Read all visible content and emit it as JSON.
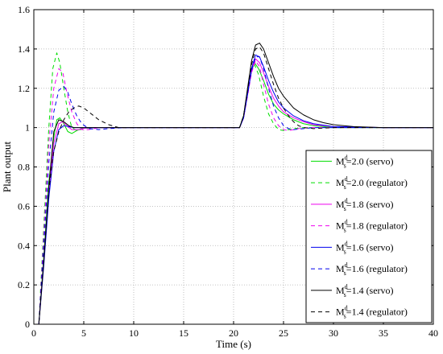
{
  "chart_data": {
    "type": "line",
    "title": "",
    "xlabel": "Time (s)",
    "ylabel": "Plant output",
    "xlim": [
      0,
      40
    ],
    "ylim": [
      0,
      1.6
    ],
    "xticks": [
      0,
      5,
      10,
      15,
      20,
      25,
      30,
      35,
      40
    ],
    "yticks": [
      0,
      0.2,
      0.4,
      0.6,
      0.8,
      1,
      1.2,
      1.4,
      1.6
    ],
    "grid": true,
    "legend_position": "bottom-right",
    "series": [
      {
        "name": "M_s^d=2.0 (servo)",
        "label_main": "M",
        "label_sup": "d",
        "label_sub": "s",
        "label_rest": "=2.0 (servo)",
        "color": "#00dd00",
        "dash": "solid",
        "x": [
          0.5,
          1.0,
          1.5,
          2.0,
          2.3,
          2.6,
          3.0,
          3.4,
          3.8,
          4.3,
          5.0,
          6.0,
          8.0,
          20.6,
          21.0,
          21.4,
          21.8,
          22.1,
          22.5,
          23.0,
          23.5,
          24.0,
          24.5,
          25.0,
          26.0,
          27.0,
          28.0,
          30.0,
          35.0,
          40.0
        ],
        "y": [
          0,
          0.35,
          0.72,
          0.95,
          1.04,
          1.05,
          1.02,
          0.98,
          0.97,
          0.985,
          1.0,
          1.0,
          1.0,
          1.0,
          1.06,
          1.18,
          1.29,
          1.33,
          1.3,
          1.24,
          1.17,
          1.12,
          1.09,
          1.07,
          1.04,
          1.02,
          1.01,
          1.0,
          1.0,
          1.0
        ]
      },
      {
        "name": "M_s^d=2.0 (regulator)",
        "label_main": "M",
        "label_sup": "d",
        "label_sub": "s",
        "label_rest": "=2.0 (regulator)",
        "color": "#00dd00",
        "dash": "dashed",
        "x": [
          0.5,
          1.0,
          1.5,
          1.9,
          2.3,
          2.6,
          3.0,
          3.4,
          3.8,
          4.3,
          5.0,
          6.0,
          8.0,
          20.6,
          21.0,
          21.4,
          21.8,
          22.1,
          22.5,
          23.0,
          23.5,
          24.0,
          24.5,
          25.0,
          26.0,
          27.0,
          40.0
        ],
        "y": [
          0,
          0.5,
          1.0,
          1.3,
          1.38,
          1.33,
          1.2,
          1.08,
          1.0,
          0.985,
          0.995,
          1.0,
          1.0,
          1.0,
          1.06,
          1.18,
          1.29,
          1.32,
          1.27,
          1.16,
          1.07,
          1.02,
          0.99,
          0.985,
          0.995,
          1.0,
          1.0
        ]
      },
      {
        "name": "M_s^d=1.8 (servo)",
        "label_main": "M",
        "label_sup": "d",
        "label_sub": "s",
        "label_rest": "=1.8 (servo)",
        "color": "#ee00ee",
        "dash": "solid",
        "x": [
          0.5,
          1.0,
          1.5,
          2.0,
          2.5,
          2.9,
          3.3,
          3.8,
          4.5,
          5.5,
          7.0,
          20.6,
          21.0,
          21.4,
          21.8,
          22.2,
          22.6,
          23.0,
          23.5,
          24.0,
          24.5,
          25.0,
          26.0,
          27.0,
          28.0,
          30.0,
          35.0,
          40.0
        ],
        "y": [
          0,
          0.33,
          0.68,
          0.92,
          1.02,
          1.03,
          1.01,
          0.99,
          0.99,
          1.0,
          1.0,
          1.0,
          1.05,
          1.17,
          1.29,
          1.35,
          1.33,
          1.28,
          1.21,
          1.15,
          1.11,
          1.08,
          1.05,
          1.03,
          1.015,
          1.005,
          1.0,
          1.0
        ]
      },
      {
        "name": "M_s^d=1.8 (regulator)",
        "label_main": "M",
        "label_sup": "d",
        "label_sub": "s",
        "label_rest": "=1.8 (regulator)",
        "color": "#ee00ee",
        "dash": "dashed",
        "x": [
          0.5,
          1.0,
          1.5,
          2.0,
          2.5,
          2.9,
          3.3,
          3.8,
          4.3,
          4.8,
          5.5,
          6.5,
          8.0,
          20.6,
          21.0,
          21.4,
          21.8,
          22.2,
          22.6,
          23.0,
          23.5,
          24.0,
          24.5,
          25.0,
          25.5,
          26.5,
          27.5,
          40.0
        ],
        "y": [
          0,
          0.45,
          0.92,
          1.2,
          1.3,
          1.28,
          1.18,
          1.08,
          1.02,
          0.99,
          0.99,
          1.0,
          1.0,
          1.0,
          1.05,
          1.16,
          1.28,
          1.34,
          1.31,
          1.22,
          1.12,
          1.05,
          1.01,
          0.99,
          0.985,
          0.995,
          1.0,
          1.0
        ]
      },
      {
        "name": "M_s^d=1.6 (servo)",
        "label_main": "M",
        "label_sup": "d",
        "label_sub": "s",
        "label_rest": "=1.6 (servo)",
        "color": "#0000ee",
        "dash": "solid",
        "x": [
          0.5,
          1.0,
          1.5,
          2.0,
          2.5,
          3.0,
          3.5,
          4.0,
          5.0,
          6.0,
          7.0,
          20.6,
          21.0,
          21.4,
          21.8,
          22.2,
          22.6,
          23.0,
          23.5,
          24.0,
          24.5,
          25.0,
          26.0,
          27.0,
          28.0,
          30.0,
          35.0,
          40.0
        ],
        "y": [
          0,
          0.3,
          0.64,
          0.88,
          0.99,
          1.01,
          1.005,
          1.0,
          1.0,
          1.0,
          1.0,
          1.0,
          1.05,
          1.17,
          1.3,
          1.37,
          1.36,
          1.31,
          1.24,
          1.18,
          1.13,
          1.1,
          1.06,
          1.035,
          1.02,
          1.005,
          1.0,
          1.0
        ]
      },
      {
        "name": "M_s^d=1.6 (regulator)",
        "label_main": "M",
        "label_sup": "d",
        "label_sub": "s",
        "label_rest": "=1.6 (regulator)",
        "color": "#0000ee",
        "dash": "dashed",
        "x": [
          0.5,
          1.0,
          1.5,
          2.0,
          2.5,
          3.0,
          3.4,
          3.8,
          4.3,
          4.8,
          5.5,
          6.5,
          7.5,
          9.0,
          20.6,
          21.0,
          21.4,
          21.8,
          22.2,
          22.6,
          23.0,
          23.5,
          24.0,
          24.5,
          25.0,
          25.5,
          26.0,
          27.0,
          28.0,
          40.0
        ],
        "y": [
          0,
          0.4,
          0.82,
          1.08,
          1.19,
          1.21,
          1.18,
          1.12,
          1.06,
          1.02,
          0.995,
          0.99,
          0.995,
          1.0,
          1.0,
          1.05,
          1.17,
          1.29,
          1.36,
          1.36,
          1.3,
          1.2,
          1.11,
          1.05,
          1.01,
          0.995,
          0.99,
          0.995,
          1.0,
          1.0
        ]
      },
      {
        "name": "M_s^d=1.4 (servo)",
        "label_main": "M",
        "label_sup": "d",
        "label_sub": "s",
        "label_rest": "=1.4 (servo)",
        "color": "#000000",
        "dash": "solid",
        "x": [
          0.5,
          1.0,
          1.5,
          2.0,
          2.5,
          3.0,
          3.5,
          4.0,
          5.0,
          6.0,
          20.6,
          21.0,
          21.4,
          21.8,
          22.2,
          22.6,
          23.0,
          23.5,
          24.0,
          24.5,
          25.0,
          26.0,
          27.0,
          28.0,
          29.0,
          30.0,
          32.0,
          35.0,
          40.0
        ],
        "y": [
          0,
          0.32,
          0.7,
          0.98,
          1.04,
          1.03,
          1.01,
          1.0,
          1.0,
          1.0,
          1.0,
          1.06,
          1.2,
          1.34,
          1.42,
          1.43,
          1.4,
          1.33,
          1.26,
          1.2,
          1.16,
          1.1,
          1.065,
          1.04,
          1.025,
          1.015,
          1.005,
          1.0,
          1.0
        ]
      },
      {
        "name": "M_s^d=1.4 (regulator)",
        "label_main": "M",
        "label_sup": "d",
        "label_sub": "s",
        "label_rest": "=1.4 (regulator)",
        "color": "#000000",
        "dash": "dashed",
        "x": [
          0.5,
          1.0,
          1.5,
          2.0,
          2.5,
          3.0,
          3.5,
          4.0,
          4.5,
          5.0,
          5.5,
          6.0,
          6.5,
          7.5,
          8.5,
          10.0,
          20.6,
          21.0,
          21.4,
          21.8,
          22.2,
          22.6,
          23.0,
          23.5,
          24.0,
          24.5,
          25.0,
          25.5,
          26.0,
          26.5,
          27.0,
          28.0,
          30.0,
          40.0
        ],
        "y": [
          0,
          0.33,
          0.68,
          0.88,
          0.98,
          1.04,
          1.08,
          1.1,
          1.11,
          1.1,
          1.08,
          1.06,
          1.04,
          1.015,
          1.0,
          1.0,
          1.0,
          1.06,
          1.19,
          1.32,
          1.4,
          1.41,
          1.38,
          1.3,
          1.22,
          1.15,
          1.1,
          1.06,
          1.03,
          1.01,
          1.0,
          0.995,
          1.0,
          1.0
        ]
      }
    ]
  }
}
